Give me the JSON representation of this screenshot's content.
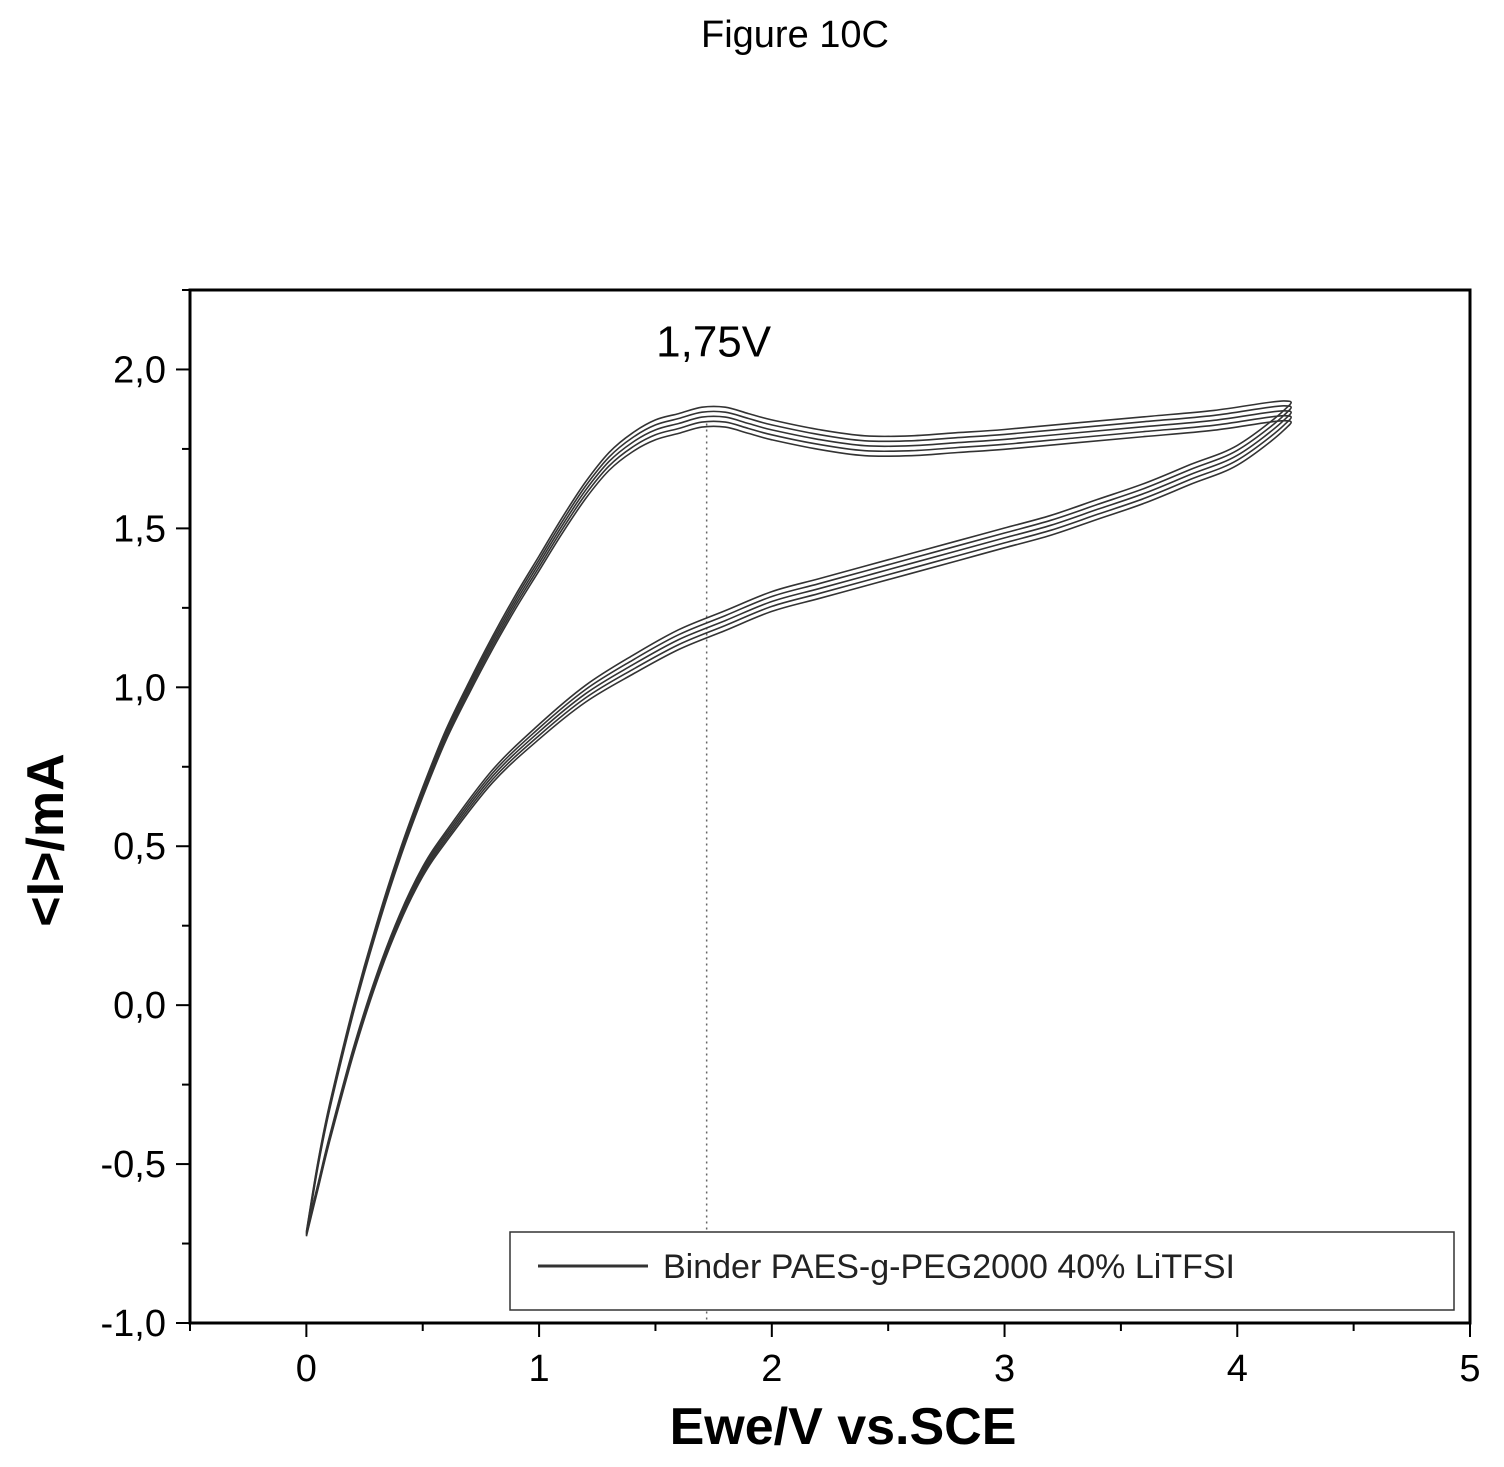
{
  "figure_label": "Figure 10C",
  "chart_data": {
    "type": "line",
    "xlabel": "Ewe/V vs.SCE",
    "ylabel": "<I>/mA",
    "xlim": [
      -0.5,
      5
    ],
    "ylim": [
      -1.0,
      2.25
    ],
    "x_ticks": [
      0,
      1,
      2,
      3,
      4,
      5
    ],
    "x_tick_labels": [
      "0",
      "1",
      "2",
      "3",
      "4",
      "5"
    ],
    "y_ticks": [
      -1.0,
      -0.5,
      0.0,
      0.5,
      1.0,
      1.5,
      2.0
    ],
    "y_tick_labels": [
      "-1,0",
      "-0,5",
      "0,0",
      "0,5",
      "1,0",
      "1,5",
      "2,0"
    ],
    "grid": false,
    "legend_position": "bottom-right",
    "series": [
      {
        "name": "Binder PAES-g-PEG2000 40% LiTFSI",
        "cycles": 5,
        "color": "#333333",
        "forward_scan": {
          "x": [
            0.0,
            0.05,
            0.1,
            0.2,
            0.3,
            0.4,
            0.5,
            0.6,
            0.7,
            0.8,
            0.9,
            1.0,
            1.1,
            1.2,
            1.3,
            1.4,
            1.5,
            1.6,
            1.7,
            1.8,
            1.9,
            2.0,
            2.2,
            2.4,
            2.6,
            2.8,
            3.0,
            3.3,
            3.6,
            3.9,
            4.2
          ],
          "y": [
            -0.72,
            -0.5,
            -0.32,
            -0.02,
            0.24,
            0.47,
            0.67,
            0.85,
            1.0,
            1.14,
            1.27,
            1.39,
            1.51,
            1.62,
            1.71,
            1.77,
            1.81,
            1.83,
            1.85,
            1.85,
            1.83,
            1.81,
            1.78,
            1.76,
            1.76,
            1.77,
            1.78,
            1.8,
            1.82,
            1.84,
            1.87
          ]
        },
        "reverse_scan": {
          "x": [
            4.2,
            4.0,
            3.8,
            3.6,
            3.4,
            3.2,
            3.0,
            2.8,
            2.6,
            2.4,
            2.2,
            2.0,
            1.8,
            1.6,
            1.4,
            1.2,
            1.0,
            0.8,
            0.6,
            0.5,
            0.4,
            0.3,
            0.2,
            0.1,
            0.05,
            0.0
          ],
          "y": [
            1.84,
            1.73,
            1.67,
            1.61,
            1.56,
            1.51,
            1.47,
            1.43,
            1.39,
            1.35,
            1.31,
            1.27,
            1.21,
            1.15,
            1.07,
            0.98,
            0.86,
            0.72,
            0.53,
            0.42,
            0.27,
            0.08,
            -0.15,
            -0.42,
            -0.57,
            -0.72
          ]
        }
      }
    ],
    "annotations": [
      {
        "text": "1,75V",
        "x": 1.75,
        "y": 2.04
      }
    ],
    "reference_lines": [
      {
        "x": 1.72,
        "style": "dotted"
      }
    ]
  }
}
